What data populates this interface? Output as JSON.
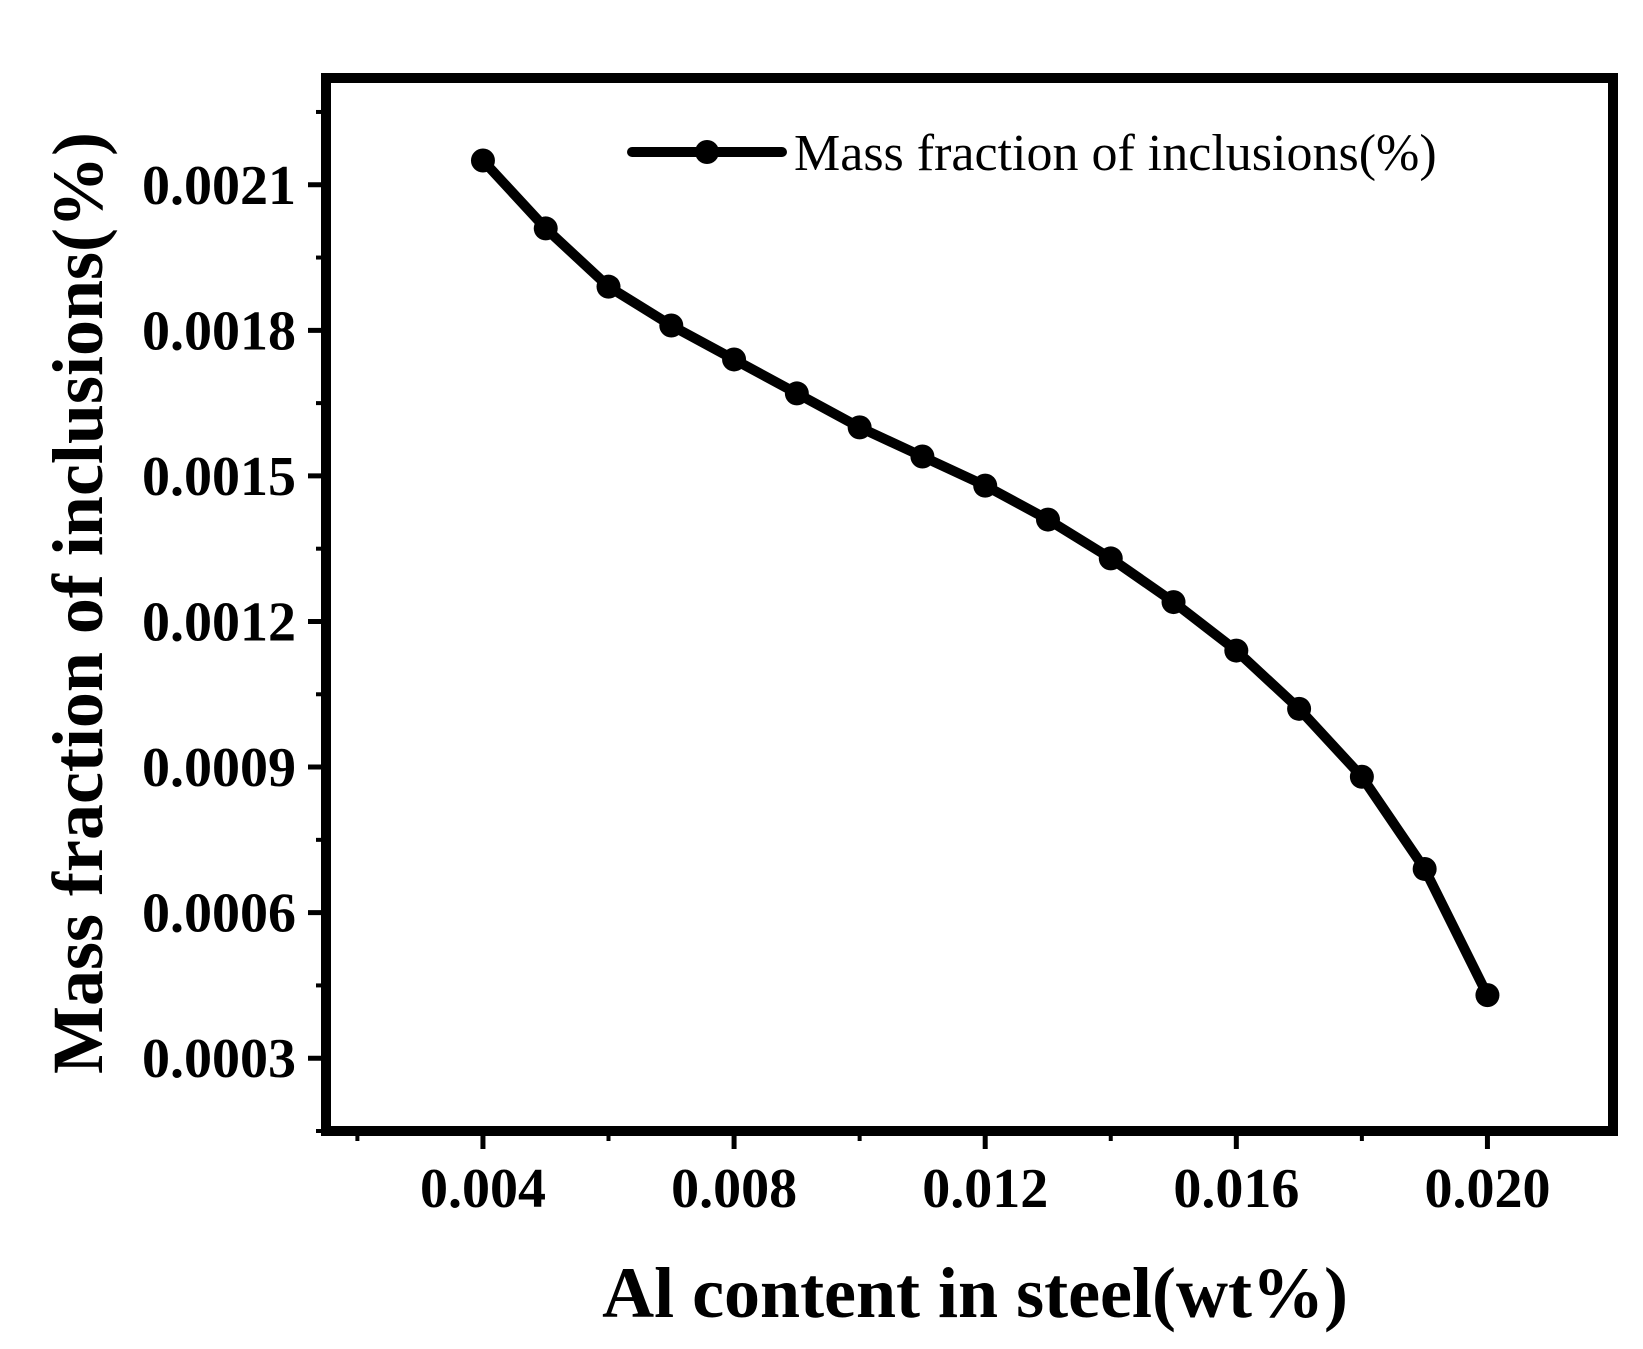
{
  "chart_data": {
    "type": "line",
    "title": "",
    "xlabel": "Al content in steel(wt%)",
    "ylabel": "Mass fraction of inclusions(%)",
    "xlim": [
      0.0015,
      0.022
    ],
    "ylim": [
      0.00015,
      0.00232
    ],
    "xticks": [
      0.004,
      0.008,
      0.012,
      0.016,
      0.02
    ],
    "xtick_labels": [
      "0.004",
      "0.008",
      "0.012",
      "0.016",
      "0.020"
    ],
    "yticks": [
      0.0003,
      0.0006,
      0.0009,
      0.0012,
      0.0015,
      0.0018,
      0.0021
    ],
    "ytick_labels": [
      "0.0003",
      "0.0006",
      "0.0009",
      "0.0012",
      "0.0015",
      "0.0018",
      "0.0021"
    ],
    "grid": false,
    "legend_position": "top-right",
    "series": [
      {
        "name": "Mass fraction of inclusions(%)",
        "color": "#000000",
        "marker": "circle",
        "x": [
          0.004,
          0.005,
          0.006,
          0.007,
          0.008,
          0.009,
          0.01,
          0.011,
          0.012,
          0.013,
          0.014,
          0.015,
          0.016,
          0.017,
          0.018,
          0.019,
          0.02
        ],
        "values": [
          0.00215,
          0.00201,
          0.00189,
          0.00181,
          0.00174,
          0.00167,
          0.0016,
          0.00154,
          0.00148,
          0.00141,
          0.00133,
          0.00124,
          0.00114,
          0.00102,
          0.00088,
          0.00069,
          0.00043
        ]
      }
    ]
  }
}
